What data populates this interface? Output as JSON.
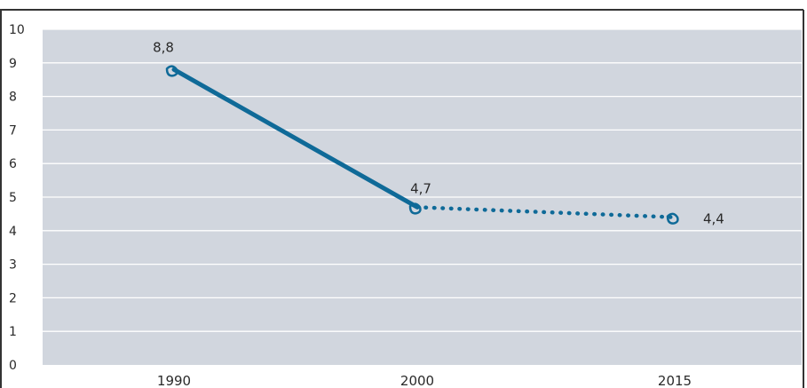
{
  "chart_data": {
    "type": "line",
    "title": "",
    "xlabel": "",
    "ylabel": "",
    "categories": [
      "1990",
      "2000",
      "2015"
    ],
    "ylim": [
      0,
      10
    ],
    "y_ticks": [
      "0",
      "1",
      "2",
      "3",
      "4",
      "5",
      "6",
      "7",
      "8",
      "9",
      "10"
    ],
    "grid": true,
    "legend": "none",
    "series": [
      {
        "values": [
          8.8,
          4.7,
          4.4
        ],
        "labels": [
          "8,8",
          "4,7",
          "4,4"
        ],
        "segment_styles": [
          "solid",
          "dotted"
        ]
      }
    ],
    "colors": {
      "line": "#0f6a98",
      "plot_background": "#d1d6de",
      "gridline": "#ffffff",
      "frame": "#333333"
    }
  }
}
